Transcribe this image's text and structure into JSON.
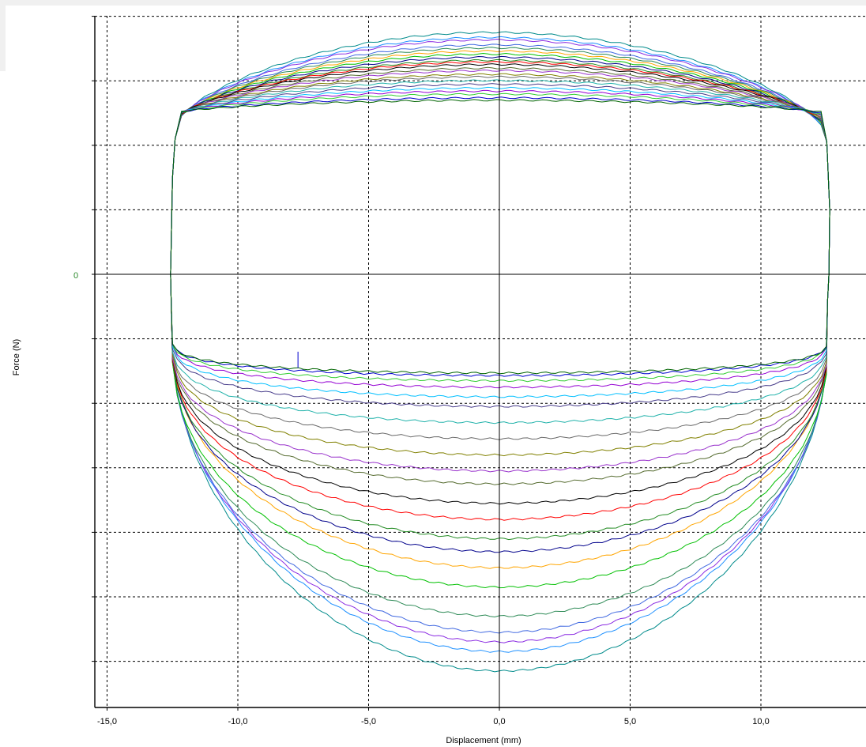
{
  "chart_data": {
    "type": "line",
    "xlabel": "Displacement (mm)",
    "ylabel": "Force (N)",
    "xlim": [
      -15.5,
      13.9
    ],
    "x_ticks": [
      -15,
      -10,
      -5,
      0,
      5,
      10
    ],
    "x_tick_labels": [
      "-15,0",
      "-10,0",
      "-5,0",
      "0,0",
      "5,0",
      "10,0"
    ],
    "y_zero_label": "0",
    "y_ticks_gridlines": [
      4,
      3,
      2,
      1,
      0,
      -1,
      -2,
      -3,
      -4,
      -5,
      -6
    ],
    "ylim": [
      -6.5,
      4.25
    ],
    "grid": true,
    "legend": "none",
    "stroke_left_x": -12.55,
    "stroke_right_x": 12.6,
    "series_colors": [
      "#008b8b",
      "#1e90ff",
      "#8a2be2",
      "#4169e1",
      "#2e8b57",
      "#ffa500",
      "#00c000",
      "#00008b",
      "#228b22",
      "#ff0000",
      "#000000",
      "#556b2f",
      "#9932cc",
      "#808000",
      "#696969",
      "#20b2aa",
      "#483d8b",
      "#00bfff",
      "#9400d3",
      "#32cd32",
      "#0000cd",
      "#006400"
    ],
    "series": [
      {
        "upper_peak": 3.8,
        "lower_trough": -6.15
      },
      {
        "upper_peak": 3.72,
        "lower_trough": -5.85
      },
      {
        "upper_peak": 3.68,
        "lower_trough": -5.7
      },
      {
        "upper_peak": 3.6,
        "lower_trough": -5.55
      },
      {
        "upper_peak": 3.55,
        "lower_trough": -5.3
      },
      {
        "upper_peak": 3.5,
        "lower_trough": -4.55
      },
      {
        "upper_peak": 3.45,
        "lower_trough": -4.85
      },
      {
        "upper_peak": 3.4,
        "lower_trough": -4.3
      },
      {
        "upper_peak": 3.35,
        "lower_trough": -4.1
      },
      {
        "upper_peak": 3.32,
        "lower_trough": -3.8
      },
      {
        "upper_peak": 3.28,
        "lower_trough": -3.55
      },
      {
        "upper_peak": 3.22,
        "lower_trough": -3.25
      },
      {
        "upper_peak": 3.18,
        "lower_trough": -3.05
      },
      {
        "upper_peak": 3.12,
        "lower_trough": -2.8
      },
      {
        "upper_peak": 3.08,
        "lower_trough": -2.55
      },
      {
        "upper_peak": 3.02,
        "lower_trough": -2.3
      },
      {
        "upper_peak": 2.96,
        "lower_trough": -2.05
      },
      {
        "upper_peak": 2.9,
        "lower_trough": -1.9
      },
      {
        "upper_peak": 2.85,
        "lower_trough": -1.75
      },
      {
        "upper_peak": 2.8,
        "lower_trough": -1.65
      },
      {
        "upper_peak": 2.74,
        "lower_trough": -1.57
      },
      {
        "upper_peak": 2.7,
        "lower_trough": -1.53
      }
    ]
  }
}
